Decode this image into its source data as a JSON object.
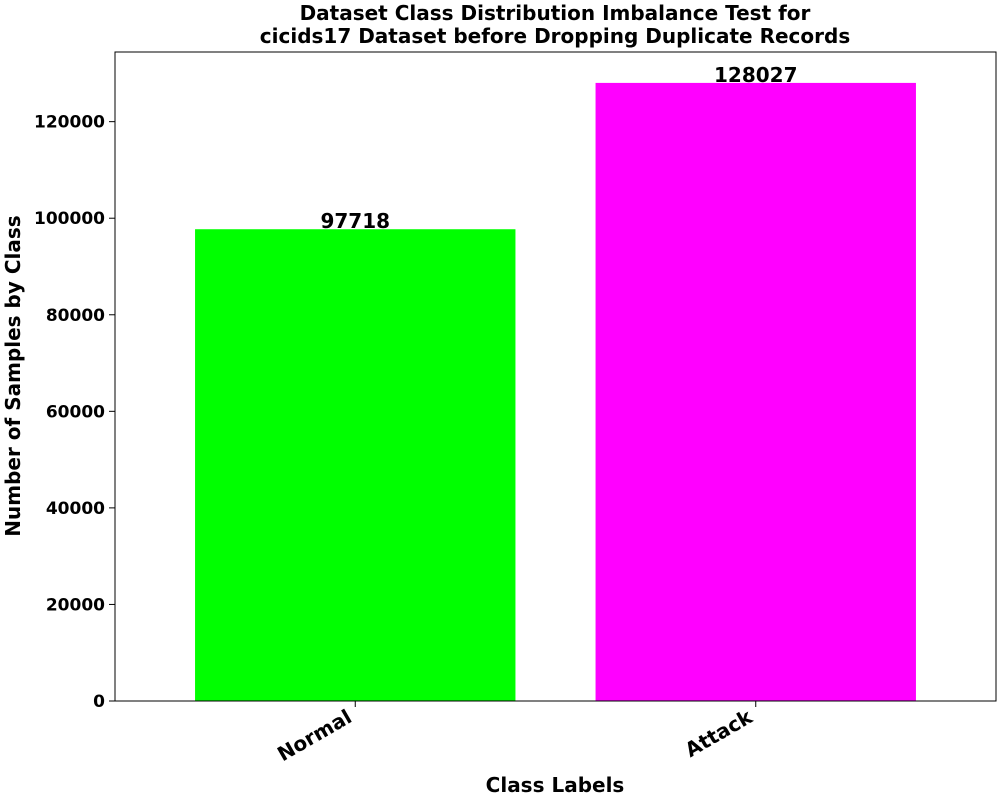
{
  "chart_data": {
    "type": "bar",
    "title_lines": [
      "Dataset Class Distribution Imbalance Test for",
      "cicids17 Dataset before Dropping Duplicate Records"
    ],
    "xlabel": "Class Labels",
    "ylabel": "Number of Samples by Class",
    "categories": [
      "Normal",
      "Attack"
    ],
    "values": [
      97718,
      128027
    ],
    "data_labels": [
      "97718",
      "128027"
    ],
    "colors": [
      "#00ff00",
      "#ff00ff"
    ],
    "ylim": [
      0,
      134428
    ],
    "yticks": [
      0,
      20000,
      40000,
      60000,
      80000,
      100000,
      120000
    ],
    "ytick_labels": [
      "0",
      "20000",
      "40000",
      "60000",
      "80000",
      "100000",
      "120000"
    ],
    "grid": false,
    "legend": "none"
  }
}
